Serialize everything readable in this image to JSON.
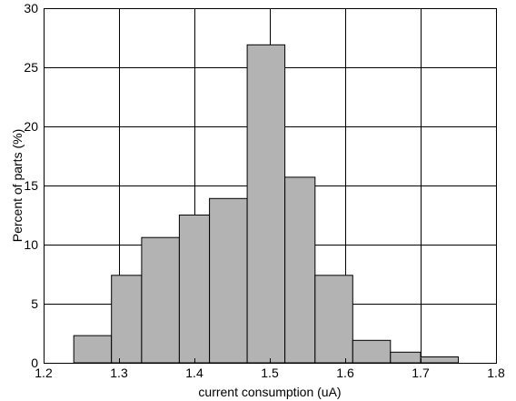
{
  "chart_data": {
    "type": "bar",
    "title": "",
    "xlabel": "current consumption (uA)",
    "ylabel": "Percent of parts (%)",
    "xlim": [
      1.2,
      1.8
    ],
    "ylim": [
      0,
      30
    ],
    "xticks": [
      1.2,
      1.3,
      1.4,
      1.5,
      1.6,
      1.7,
      1.8
    ],
    "xtick_labels": [
      "1.2",
      "1.3",
      "1.4",
      "1.5",
      "1.6",
      "1.7",
      "1.8"
    ],
    "yticks": [
      0,
      5,
      10,
      15,
      20,
      25,
      30
    ],
    "ytick_labels": [
      "0",
      "5",
      "10",
      "15",
      "20",
      "25",
      "30"
    ],
    "grid": true,
    "bar_color": "#b3b3b3",
    "bins": [
      {
        "x0": 1.24,
        "x1": 1.29,
        "value": 2.3
      },
      {
        "x0": 1.29,
        "x1": 1.33,
        "value": 7.4
      },
      {
        "x0": 1.33,
        "x1": 1.38,
        "value": 10.6
      },
      {
        "x0": 1.38,
        "x1": 1.42,
        "value": 12.5
      },
      {
        "x0": 1.42,
        "x1": 1.47,
        "value": 13.9
      },
      {
        "x0": 1.47,
        "x1": 1.52,
        "value": 26.9
      },
      {
        "x0": 1.52,
        "x1": 1.56,
        "value": 15.7
      },
      {
        "x0": 1.56,
        "x1": 1.61,
        "value": 7.4
      },
      {
        "x0": 1.61,
        "x1": 1.66,
        "value": 1.9
      },
      {
        "x0": 1.66,
        "x1": 1.7,
        "value": 0.9
      },
      {
        "x0": 1.7,
        "x1": 1.75,
        "value": 0.5
      }
    ]
  }
}
